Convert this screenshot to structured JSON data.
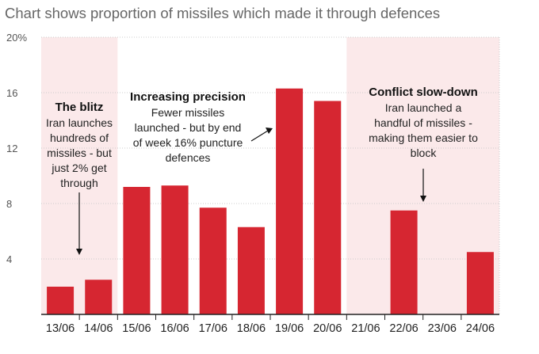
{
  "title": "Chart shows proportion of missiles which made it through defences",
  "chart_data": {
    "type": "bar",
    "title": "Chart shows proportion of missiles which made it through defences",
    "xlabel": "",
    "ylabel": "",
    "ylim": [
      0,
      20
    ],
    "yticks": [
      4,
      8,
      12,
      16,
      20
    ],
    "ytick_labels": [
      "4",
      "8",
      "12",
      "16",
      "20%"
    ],
    "grid": true,
    "categories": [
      "13/06",
      "14/06",
      "15/06",
      "16/06",
      "17/06",
      "18/06",
      "19/06",
      "20/06",
      "21/06",
      "22/06",
      "23/06",
      "24/06"
    ],
    "values": [
      2.0,
      2.5,
      9.2,
      9.3,
      7.7,
      6.3,
      16.3,
      15.4,
      null,
      7.5,
      null,
      4.5
    ],
    "bar_color": "#d62631",
    "shaded_color": "#fbe9ea",
    "shaded_periods": [
      {
        "from": "13/06",
        "to": "14/06"
      },
      {
        "from": "21/06",
        "to": "24/06"
      }
    ],
    "annotations": [
      {
        "id": "blitz",
        "heading": "The blitz",
        "lines": [
          "Iran launches",
          "hundreds of",
          "missiles - but",
          "just 2% get",
          "through"
        ],
        "points_to": "14/06"
      },
      {
        "id": "precision",
        "heading": "Increasing precision",
        "lines": [
          "Fewer missiles",
          "launched - but by end",
          "of week 16% puncture",
          "defences"
        ],
        "points_to": "19/06"
      },
      {
        "id": "slowdown",
        "heading": "Conflict slow-down",
        "lines": [
          "Iran launched a",
          "handful of missiles -",
          "making them easier to",
          "block"
        ],
        "points_to": "22/06"
      }
    ]
  }
}
